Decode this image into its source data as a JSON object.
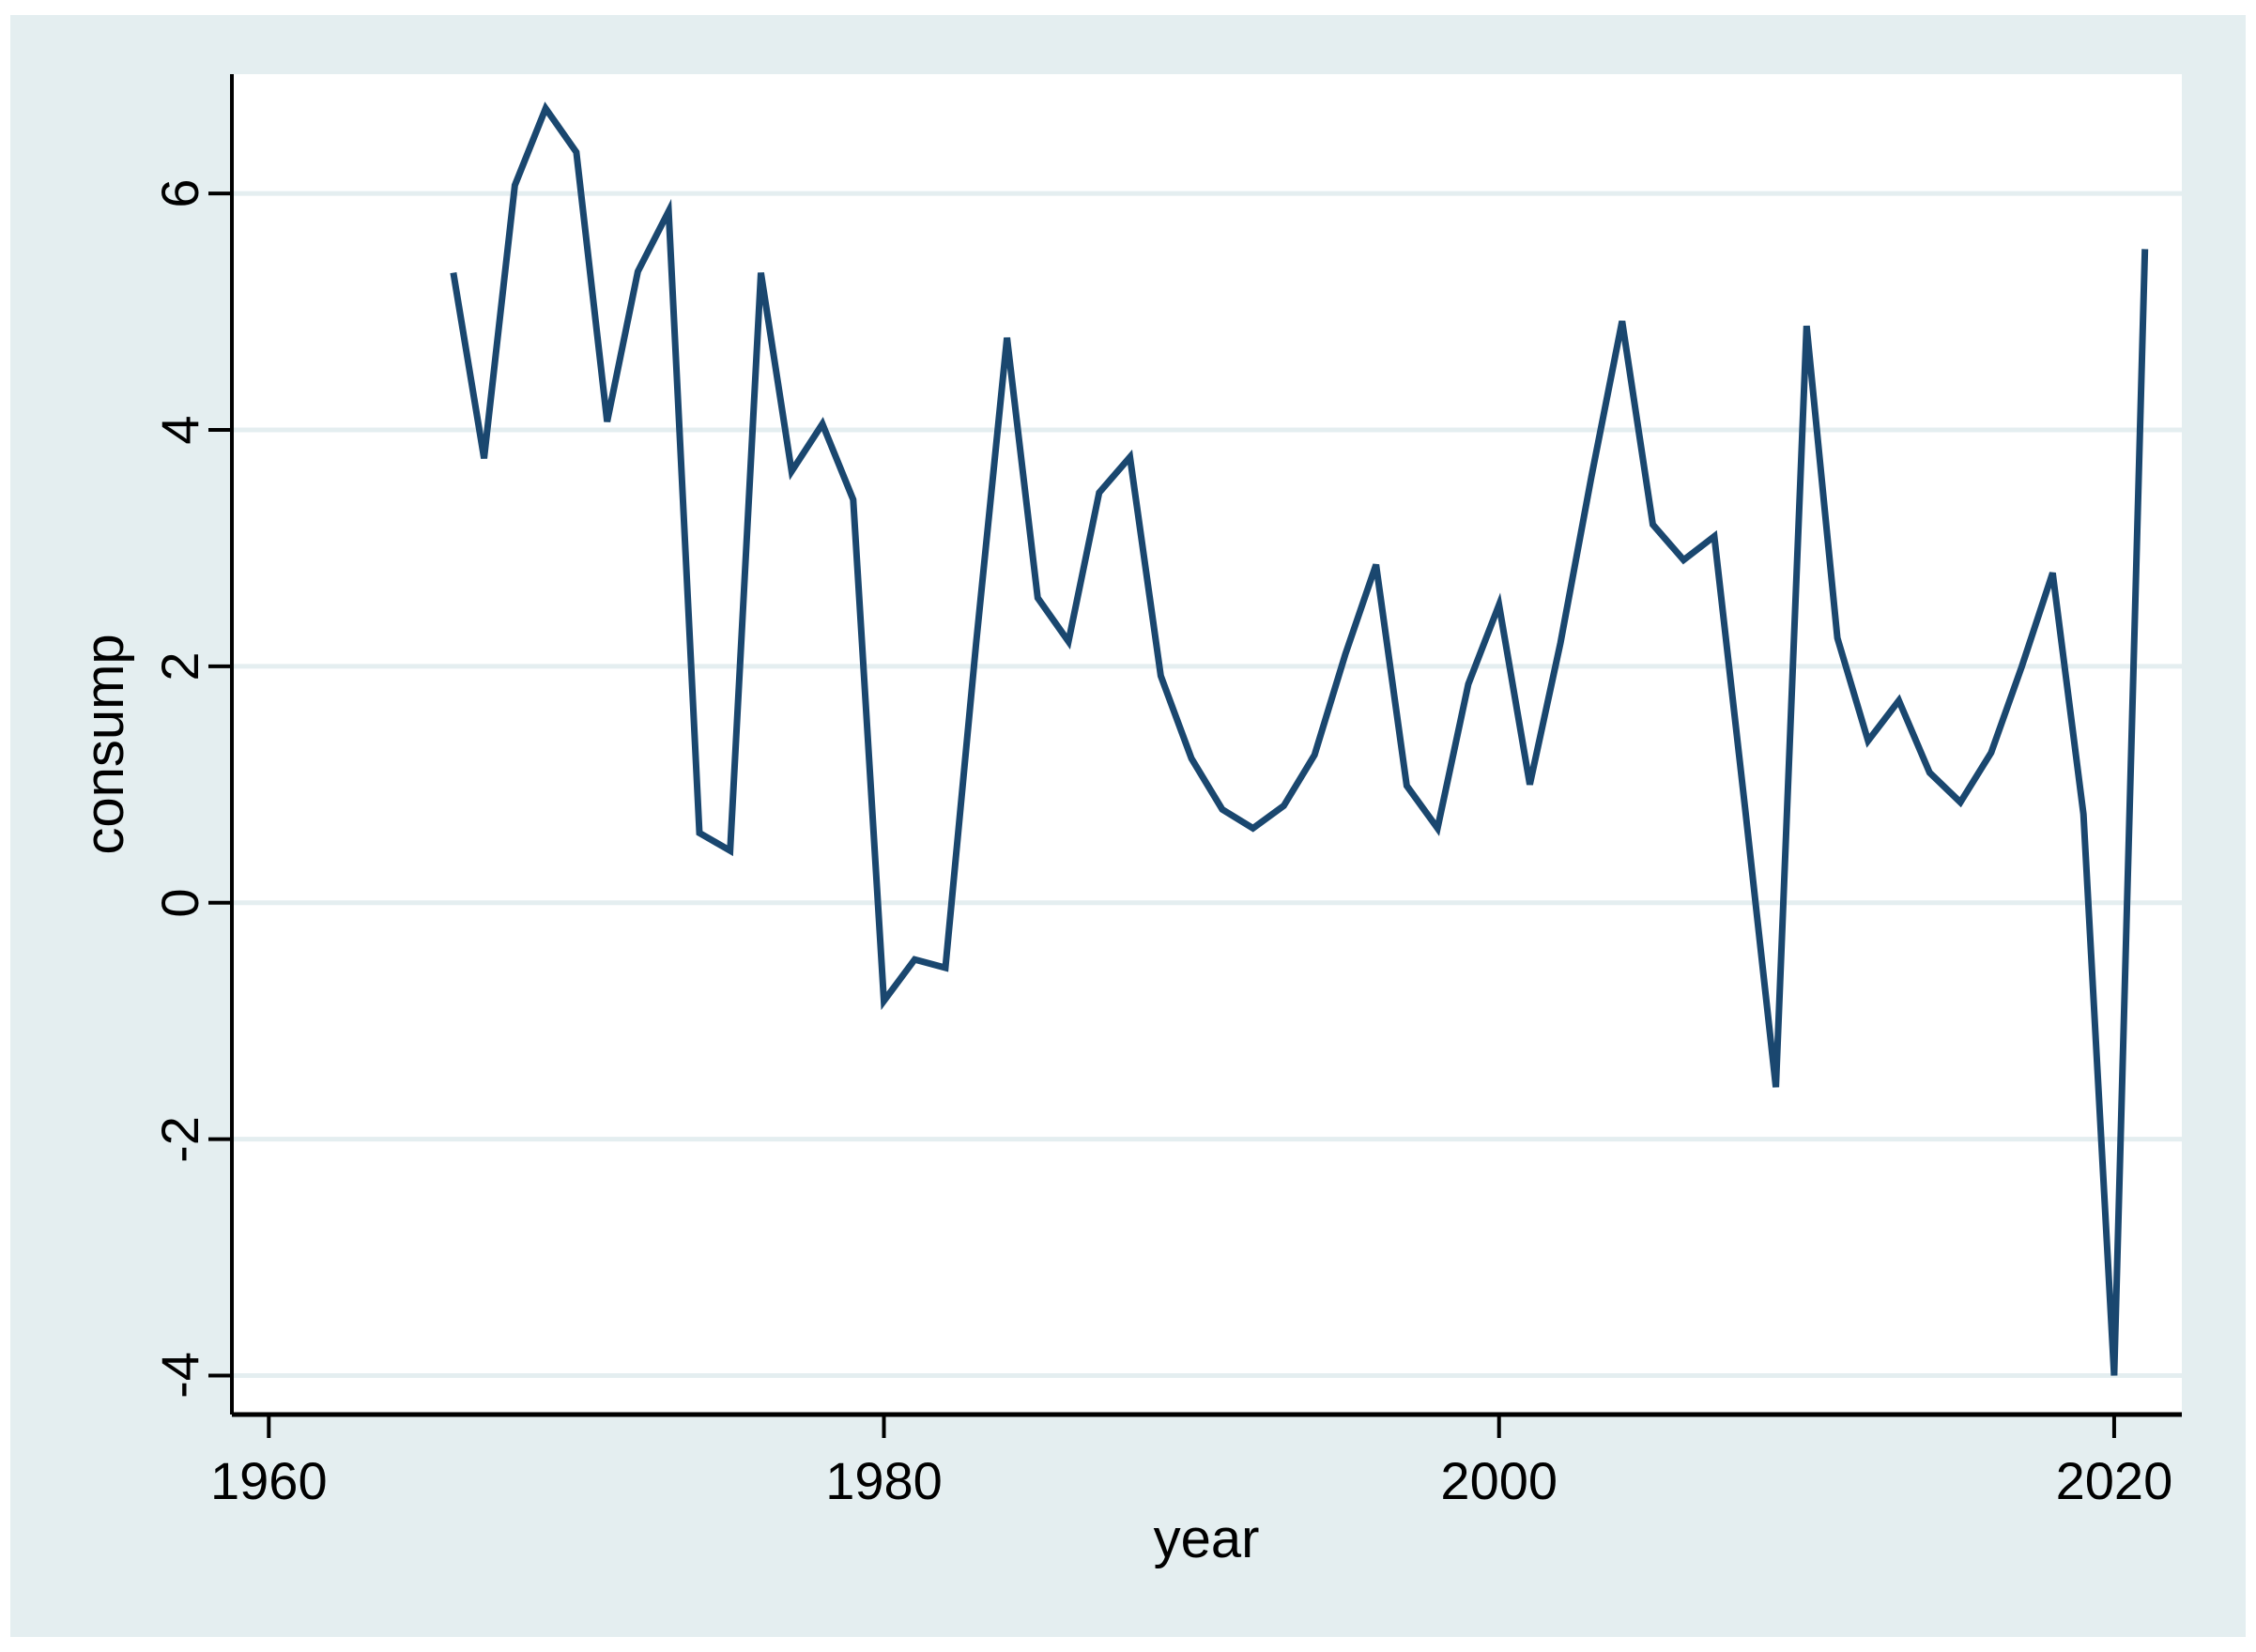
{
  "chart_data": {
    "type": "line",
    "title": "",
    "xlabel": "year",
    "ylabel": "consump",
    "grid": true,
    "legend": "none",
    "line_color": "#1a476f",
    "background_color": "#e4eef0",
    "plot_background_color": "#ffffff",
    "xlim": [
      1958.8,
      2022.2
    ],
    "ylim": [
      -4.33,
      7.01
    ],
    "x_ticks": [
      {
        "label": "1960",
        "value": 1960
      },
      {
        "label": "1980",
        "value": 1980
      },
      {
        "label": "2000",
        "value": 2000
      },
      {
        "label": "2020",
        "value": 2020
      }
    ],
    "y_ticks": [
      {
        "label": "6",
        "value": 6
      },
      {
        "label": "4",
        "value": 4
      },
      {
        "label": "2",
        "value": 2
      },
      {
        "label": "0",
        "value": 0
      },
      {
        "label": "-2",
        "value": -2
      },
      {
        "label": "-4",
        "value": -4
      }
    ],
    "x": [
      1966,
      1967,
      1968,
      1969,
      1970,
      1971,
      1972,
      1973,
      1974,
      1975,
      1976,
      1977,
      1978,
      1979,
      1980,
      1981,
      1982,
      1983,
      1984,
      1985,
      1986,
      1987,
      1988,
      1989,
      1990,
      1991,
      1992,
      1993,
      1994,
      1995,
      1996,
      1997,
      1998,
      1999,
      2000,
      2001,
      2002,
      2003,
      2004,
      2005,
      2006,
      2007,
      2008,
      2009,
      2010,
      2011,
      2012,
      2013,
      2014,
      2015,
      2016,
      2017,
      2018,
      2019,
      2020,
      2021
    ],
    "series": [
      {
        "name": "consump",
        "values": [
          5.33,
          3.76,
          6.07,
          6.72,
          6.35,
          4.07,
          5.34,
          5.85,
          0.59,
          0.44,
          5.33,
          3.65,
          4.05,
          3.41,
          -0.83,
          -0.48,
          -0.55,
          2.2,
          4.78,
          2.58,
          2.21,
          3.47,
          3.77,
          1.92,
          1.22,
          0.79,
          0.63,
          0.82,
          1.25,
          2.1,
          2.86,
          0.99,
          0.63,
          1.85,
          2.52,
          1.0,
          2.2,
          3.6,
          4.92,
          3.2,
          2.9,
          3.1,
          0.8,
          -1.56,
          4.88,
          2.24,
          1.37,
          1.71,
          1.1,
          0.85,
          1.27,
          2.0,
          2.79,
          0.75,
          -4.0,
          5.53
        ]
      }
    ]
  }
}
